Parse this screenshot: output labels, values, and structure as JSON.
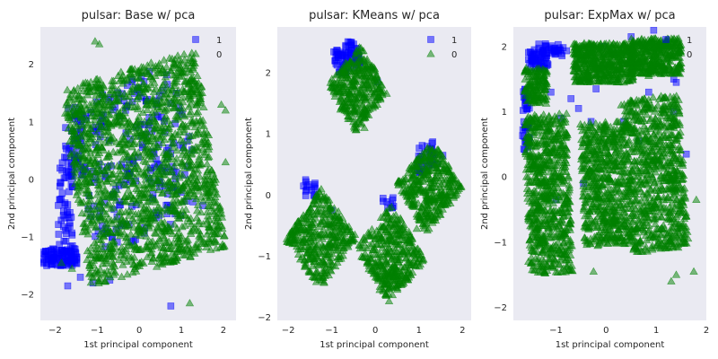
{
  "chart_data": [
    {
      "type": "scatter",
      "title": "pulsar: Base w/ pca",
      "xlabel": "1st principal component",
      "ylabel": "2nd principal component",
      "xlim": [
        -2.35,
        2.3
      ],
      "ylim": [
        -2.45,
        2.65
      ],
      "xticks": [
        -2,
        -1,
        0,
        1,
        2
      ],
      "yticks": [
        -2,
        -1,
        0,
        1,
        2
      ],
      "grid": false,
      "legend_position": "top-right",
      "series": [
        {
          "name": "1",
          "color": "#0000ff",
          "marker": "square",
          "regions": [
            {
              "center": [
                -0.1,
                0.35
              ],
              "size": [
                2.7,
                2.7
              ],
              "angle": 18,
              "count": 200
            },
            {
              "center": [
                -1.9,
                -1.35
              ],
              "size": [
                0.9,
                0.3
              ],
              "angle": 0,
              "count": 90
            },
            {
              "center": [
                -1.75,
                -0.4
              ],
              "size": [
                0.35,
                2.0
              ],
              "angle": 0,
              "count": 70
            },
            {
              "center": [
                -1.4,
                0.6
              ],
              "size": [
                0.3,
                1.2
              ],
              "angle": 0,
              "count": 25
            }
          ],
          "points": [
            [
              -1.7,
              -1.85
            ],
            [
              -1.4,
              -1.7
            ],
            [
              -1.1,
              -1.8
            ],
            [
              -0.7,
              -1.75
            ],
            [
              0.75,
              -2.2
            ],
            [
              -1.75,
              0.9
            ],
            [
              -1.65,
              0.55
            ],
            [
              -1.55,
              0.2
            ]
          ]
        },
        {
          "name": "0",
          "color": "#008000",
          "marker": "triangle",
          "regions": [
            {
              "center": [
                0.1,
                0.2
              ],
              "size": [
                3.3,
                3.5
              ],
              "angle": 12,
              "count": 1600
            }
          ],
          "points": [
            [
              -1.05,
              2.4
            ],
            [
              -0.95,
              2.35
            ],
            [
              1.95,
              1.3
            ],
            [
              2.05,
              1.2
            ],
            [
              1.2,
              -2.15
            ],
            [
              -1.6,
              -1.55
            ],
            [
              -1.85,
              -1.45
            ],
            [
              2.05,
              0.3
            ],
            [
              0.05,
              1.95
            ],
            [
              0.9,
              1.5
            ]
          ]
        }
      ]
    },
    {
      "type": "scatter",
      "title": "pulsar: KMeans w/ pca",
      "xlabel": "1st principal component",
      "ylabel": "2nd principal component",
      "xlim": [
        -2.25,
        2.2
      ],
      "ylim": [
        -2.05,
        2.75
      ],
      "xticks": [
        -2,
        -1,
        0,
        1,
        2
      ],
      "yticks": [
        -2,
        -1,
        0,
        1,
        2
      ],
      "grid": false,
      "legend_position": "top-right",
      "series": [
        {
          "name": "1",
          "color": "#0000ff",
          "marker": "square",
          "regions": [
            {
              "center": [
                -0.65,
                2.25
              ],
              "size": [
                0.55,
                0.45
              ],
              "angle": 25,
              "count": 70
            },
            {
              "center": [
                1.15,
                0.6
              ],
              "size": [
                0.5,
                0.45
              ],
              "angle": 20,
              "count": 35
            },
            {
              "center": [
                -1.5,
                0.1
              ],
              "size": [
                0.3,
                0.3
              ],
              "angle": 0,
              "count": 15
            },
            {
              "center": [
                0.3,
                -0.1
              ],
              "size": [
                0.25,
                0.25
              ],
              "angle": 0,
              "count": 10
            }
          ],
          "points": [
            [
              -0.55,
              2.45
            ],
            [
              -0.45,
              2.4
            ],
            [
              -0.85,
              2.3
            ],
            [
              0.05,
              1.85
            ],
            [
              1.3,
              0.85
            ],
            [
              1.55,
              0.65
            ],
            [
              -1.6,
              0.25
            ],
            [
              -1.0,
              -0.25
            ]
          ]
        },
        {
          "name": "0",
          "color": "#008000",
          "marker": "triangle",
          "regions": [
            {
              "center": [
                -0.4,
                1.75
              ],
              "size": [
                1.0,
                1.0
              ],
              "angle": 40,
              "count": 330
            },
            {
              "center": [
                1.25,
                0.15
              ],
              "size": [
                1.1,
                1.05
              ],
              "angle": 40,
              "count": 380
            },
            {
              "center": [
                -1.25,
                -0.7
              ],
              "size": [
                1.2,
                1.15
              ],
              "angle": 45,
              "count": 380
            },
            {
              "center": [
                0.35,
                -0.95
              ],
              "size": [
                1.1,
                1.2
              ],
              "angle": 40,
              "count": 380
            }
          ],
          "points": [
            [
              -0.8,
              1.4
            ],
            [
              0.0,
              1.55
            ],
            [
              -0.25,
              1.1
            ],
            [
              -1.9,
              -0.8
            ],
            [
              -1.2,
              -1.35
            ],
            [
              0.1,
              -1.55
            ],
            [
              1.7,
              0.05
            ],
            [
              0.95,
              -0.55
            ]
          ]
        }
      ]
    },
    {
      "type": "scatter",
      "title": "pulsar: ExpMax w/ pca",
      "xlabel": "1st principal component",
      "ylabel": "2nd principal component",
      "xlim": [
        -1.85,
        2.0
      ],
      "ylim": [
        -2.2,
        2.3
      ],
      "xticks": [
        -1,
        0,
        1,
        2
      ],
      "yticks": [
        -2,
        -1,
        0,
        1,
        2
      ],
      "grid": false,
      "legend_position": "top-right",
      "series": [
        {
          "name": "1",
          "color": "#0000ff",
          "marker": "square",
          "regions": [
            {
              "center": [
                -1.35,
                1.8
              ],
              "size": [
                0.4,
                0.3
              ],
              "angle": 0,
              "count": 60
            },
            {
              "center": [
                -1.6,
                0.9
              ],
              "size": [
                0.15,
                1.0
              ],
              "angle": 0,
              "count": 40
            },
            {
              "center": [
                -1.05,
                1.95
              ],
              "size": [
                0.6,
                0.2
              ],
              "angle": 0,
              "count": 30
            }
          ],
          "points": [
            [
              -0.05,
              2.0
            ],
            [
              0.15,
              1.9
            ],
            [
              0.5,
              2.15
            ],
            [
              0.95,
              2.25
            ],
            [
              1.35,
              1.5
            ],
            [
              1.4,
              1.45
            ],
            [
              1.35,
              1.0
            ],
            [
              1.6,
              0.35
            ],
            [
              -0.7,
              1.2
            ],
            [
              -0.55,
              1.05
            ],
            [
              -0.3,
              0.85
            ],
            [
              0.35,
              0.85
            ],
            [
              0.65,
              0.55
            ],
            [
              -0.9,
              0.9
            ],
            [
              -1.1,
              1.3
            ],
            [
              -0.2,
              1.35
            ],
            [
              0.85,
              1.3
            ],
            [
              -1.0,
              -0.35
            ],
            [
              -0.45,
              -0.1
            ]
          ]
        },
        {
          "name": "0",
          "color": "#008000",
          "marker": "triangle",
          "regions": [
            {
              "center": [
                -0.05,
                1.75
              ],
              "size": [
                1.2,
                0.6
              ],
              "angle": 0,
              "count": 520
            },
            {
              "center": [
                1.0,
                1.85
              ],
              "size": [
                1.0,
                0.55
              ],
              "angle": 0,
              "count": 380
            },
            {
              "center": [
                -1.4,
                1.4
              ],
              "size": [
                0.45,
                0.55
              ],
              "angle": 0,
              "count": 140
            },
            {
              "center": [
                -1.15,
                -0.25
              ],
              "size": [
                0.85,
                2.45
              ],
              "angle": 3,
              "count": 700
            },
            {
              "center": [
                0.0,
                -0.1
              ],
              "size": [
                0.95,
                1.9
              ],
              "angle": 3,
              "count": 600
            },
            {
              "center": [
                1.0,
                0.05
              ],
              "size": [
                1.1,
                2.35
              ],
              "angle": 5,
              "count": 750
            }
          ],
          "points": [
            [
              0.55,
              -1.1
            ],
            [
              0.75,
              -0.75
            ],
            [
              -1.55,
              -1.3
            ],
            [
              -1.6,
              0.35
            ],
            [
              1.3,
              -1.6
            ],
            [
              1.4,
              -1.5
            ],
            [
              1.75,
              -1.45
            ],
            [
              1.8,
              -0.35
            ],
            [
              0.3,
              1.1
            ],
            [
              -0.25,
              -1.45
            ],
            [
              0.85,
              1.55
            ]
          ]
        }
      ]
    }
  ]
}
